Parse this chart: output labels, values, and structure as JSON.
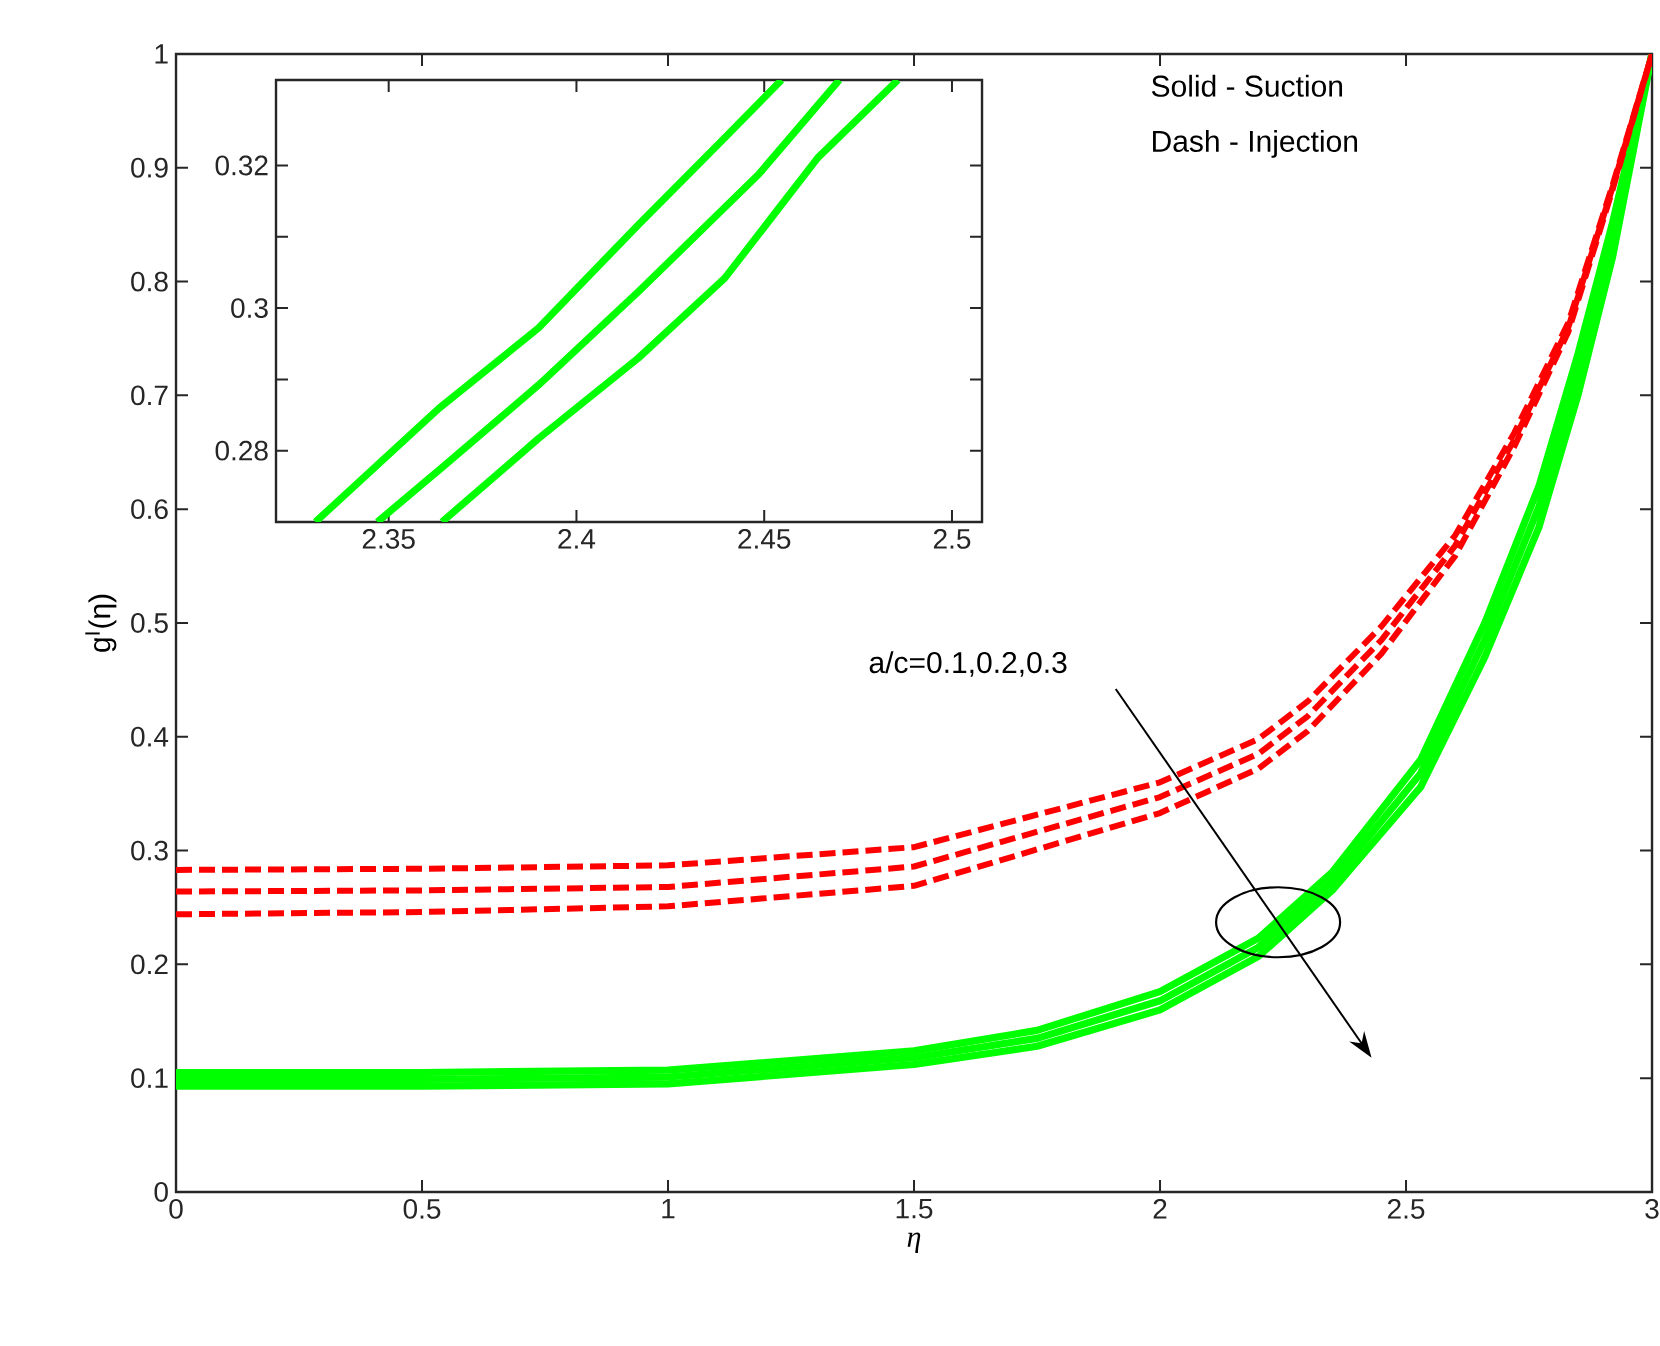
{
  "chart_data": [
    {
      "type": "line",
      "xlabel": "η",
      "ylabel": "g$^{I}$(η)",
      "xlim": [
        0,
        3
      ],
      "ylim": [
        0,
        1
      ],
      "xticks": [
        0,
        0.5,
        1,
        1.5,
        2,
        2.5,
        3
      ],
      "yticks": [
        0,
        0.1,
        0.2,
        0.3,
        0.4,
        0.5,
        0.6,
        0.7,
        0.8,
        0.9,
        1
      ],
      "annotations": [
        "Solid - Suction",
        "Dash - Injection",
        "a/c=0.1,0.2,0.3"
      ],
      "series": [
        {
          "color": "#00ff00",
          "line_style": "solid",
          "x": [
            0,
            0.5,
            1,
            1.5,
            1.75,
            2,
            2.2,
            2.35,
            2.53,
            2.66,
            2.77,
            2.85,
            2.92,
            3
          ],
          "values": [
            0.105,
            0.105,
            0.107,
            0.124,
            0.142,
            0.176,
            0.223,
            0.281,
            0.38,
            0.5,
            0.62,
            0.737,
            0.852,
            1.0
          ]
        },
        {
          "color": "#00ff00",
          "line_style": "solid",
          "x": [
            0,
            0.5,
            1,
            1.5,
            1.75,
            2,
            2.2,
            2.35,
            2.53,
            2.66,
            2.77,
            2.85,
            2.92,
            3
          ],
          "values": [
            0.099,
            0.099,
            0.101,
            0.118,
            0.135,
            0.168,
            0.215,
            0.273,
            0.368,
            0.485,
            0.602,
            0.719,
            0.837,
            1.0
          ]
        },
        {
          "color": "#00ff00",
          "line_style": "solid",
          "x": [
            0,
            0.5,
            1,
            1.5,
            1.75,
            2,
            2.2,
            2.35,
            2.53,
            2.66,
            2.77,
            2.85,
            2.92,
            3
          ],
          "values": [
            0.093,
            0.093,
            0.095,
            0.112,
            0.128,
            0.16,
            0.207,
            0.265,
            0.356,
            0.47,
            0.584,
            0.701,
            0.822,
            1.0
          ]
        },
        {
          "color": "#ff0000",
          "line_style": "dashed",
          "x": [
            0,
            0.5,
            1,
            1.5,
            2,
            2.2,
            2.3,
            2.45,
            2.6,
            2.72,
            2.83,
            2.92,
            3
          ],
          "values": [
            0.283,
            0.284,
            0.287,
            0.303,
            0.36,
            0.398,
            0.431,
            0.497,
            0.577,
            0.667,
            0.764,
            0.885,
            1.0
          ]
        },
        {
          "color": "#ff0000",
          "line_style": "dashed",
          "x": [
            0,
            0.5,
            1,
            1.5,
            2,
            2.2,
            2.3,
            2.45,
            2.6,
            2.72,
            2.83,
            2.92,
            3
          ],
          "values": [
            0.264,
            0.265,
            0.268,
            0.286,
            0.347,
            0.385,
            0.418,
            0.485,
            0.568,
            0.661,
            0.76,
            0.883,
            1.0
          ]
        },
        {
          "color": "#ff0000",
          "line_style": "dashed",
          "x": [
            0,
            0.5,
            1,
            1.5,
            2,
            2.2,
            2.3,
            2.45,
            2.6,
            2.72,
            2.83,
            2.92,
            3
          ],
          "values": [
            0.244,
            0.246,
            0.251,
            0.269,
            0.333,
            0.372,
            0.405,
            0.473,
            0.559,
            0.655,
            0.756,
            0.881,
            1.0
          ]
        }
      ]
    },
    {
      "type": "line",
      "xlim": [
        2.32,
        2.508
      ],
      "ylim": [
        0.27,
        0.332
      ],
      "xticks": [
        2.35,
        2.4,
        2.45,
        2.5
      ],
      "yticks": [
        {
          "value": 0.27,
          "label": null
        },
        0.28,
        {
          "value": 0.29,
          "label": null
        },
        0.3,
        {
          "value": 0.31,
          "label": null
        },
        0.32
      ],
      "series": [
        {
          "color": "#00ff00",
          "line_style": "solid",
          "x": [
            2.3305,
            2.3633,
            2.3899,
            2.4165,
            2.4395,
            2.4546
          ],
          "values": [
            0.27,
            0.2859,
            0.2972,
            0.3117,
            0.3239,
            0.332
          ]
        },
        {
          "color": "#00ff00",
          "line_style": "solid",
          "x": [
            2.347,
            2.365,
            2.3899,
            2.4165,
            2.4484,
            2.47
          ],
          "values": [
            0.27,
            0.278,
            0.2892,
            0.3023,
            0.3187,
            0.332
          ]
        },
        {
          "color": "#00ff00",
          "line_style": "solid",
          "x": [
            2.3642,
            2.3899,
            2.4165,
            2.4395,
            2.4643,
            2.4856
          ],
          "values": [
            0.27,
            0.2817,
            0.293,
            0.3042,
            0.3211,
            0.332
          ]
        }
      ]
    }
  ]
}
